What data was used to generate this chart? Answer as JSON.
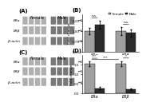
{
  "panel_B": {
    "title": "B",
    "categories": [
      "ERα",
      "ERβ"
    ],
    "female_vals": [
      1.0,
      1.0
    ],
    "male_vals": [
      1.15,
      0.95
    ],
    "female_err": [
      0.08,
      0.09
    ],
    "male_err": [
      0.1,
      0.08
    ],
    "female_color": "#a0a0a0",
    "male_color": "#2a2a2a",
    "ylabel": "Fold change",
    "ylim": [
      0.5,
      1.4
    ],
    "yticks": [
      0.5,
      0.75,
      1.0,
      1.25
    ],
    "ns_labels": [
      "n.s.",
      "n.s."
    ],
    "legend_female": "Female",
    "legend_male": "Male"
  },
  "panel_D": {
    "title": "D",
    "categories": [
      "ERα",
      "ERβ"
    ],
    "female_vals": [
      1.55,
      1.55
    ],
    "male_vals": [
      0.25,
      0.2
    ],
    "female_err": [
      0.12,
      0.13
    ],
    "male_err": [
      0.05,
      0.04
    ],
    "female_color": "#a0a0a0",
    "male_color": "#2a2a2a",
    "ylabel": "Fold change",
    "ylim": [
      0,
      2.0
    ],
    "yticks": [
      0,
      0.5,
      1.0,
      1.5
    ],
    "sig_labels": [
      "***",
      "*"
    ],
    "legend_female": "Female",
    "legend_male": "Male"
  },
  "wb_color_light": "#c8c8c8",
  "wb_color_dark": "#606060",
  "wb_bg": "#e8e8e8",
  "fig_bg": "#ffffff"
}
